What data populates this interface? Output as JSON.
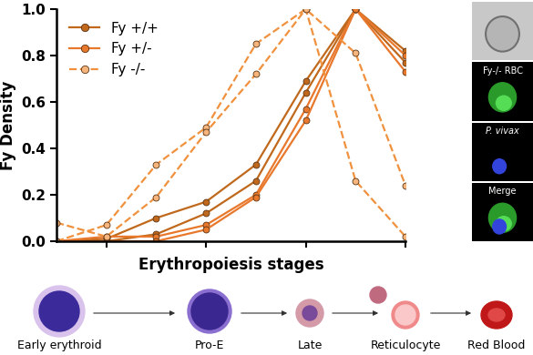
{
  "chart_data": {
    "type": "line",
    "x": [
      0,
      1,
      2,
      3,
      4,
      5,
      6,
      7
    ],
    "xlabel": "Erythropoiesis stages",
    "ylabel": "Fy Density",
    "xlim": [
      0,
      7
    ],
    "xticks": [
      1,
      3,
      5,
      7
    ],
    "ylim": [
      0,
      1
    ],
    "yticks": [
      {
        "value": 0,
        "label": "0.0"
      },
      {
        "value": 0.2,
        "label": "0.2"
      },
      {
        "value": 0.4,
        "label": "0.4"
      },
      {
        "value": 0.6,
        "label": "0.6"
      },
      {
        "value": 0.8,
        "label": "0.8"
      },
      {
        "value": 1,
        "label": "1.0"
      }
    ],
    "tick_labels": "y",
    "legend": "upper left",
    "series": [
      {
        "name": "Fy +/+",
        "color": "#c0691d",
        "line_style": "solid",
        "marker": "circle",
        "values": [
          [
            0,
            0.01,
            0.1,
            0.17,
            0.33,
            0.69,
            1.0,
            0.82
          ],
          [
            0,
            0.0,
            0.03,
            0.12,
            0.26,
            0.64,
            1.0,
            0.77
          ]
        ]
      },
      {
        "name": "Fy +/-",
        "color": "#e8782c",
        "line_style": "solid",
        "marker": "circle",
        "values": [
          [
            0,
            0.02,
            0.02,
            0.07,
            0.2,
            0.57,
            1.0,
            0.8
          ],
          [
            0,
            0.0,
            0.0,
            0.05,
            0.19,
            0.52,
            1.0,
            0.73
          ]
        ]
      },
      {
        "name": "Fy -/-",
        "color": "#f0913e",
        "line_style": "dashed",
        "marker": "circle",
        "values": [
          [
            0.0,
            0.07,
            0.33,
            0.49,
            0.85,
            1.0,
            0.81,
            0.24
          ],
          [
            0.08,
            0.02,
            0.19,
            0.47,
            0.72,
            1.0,
            0.26,
            0.02
          ]
        ]
      }
    ]
  },
  "image_panels": {
    "labels": [
      "Fy-/- RBC",
      "P. vivax",
      "Merge"
    ]
  },
  "stage_diagram": {
    "labels": [
      "Early erythroid",
      "Pro-E",
      "Late",
      "Reticulocyte",
      "Red Blood"
    ]
  }
}
